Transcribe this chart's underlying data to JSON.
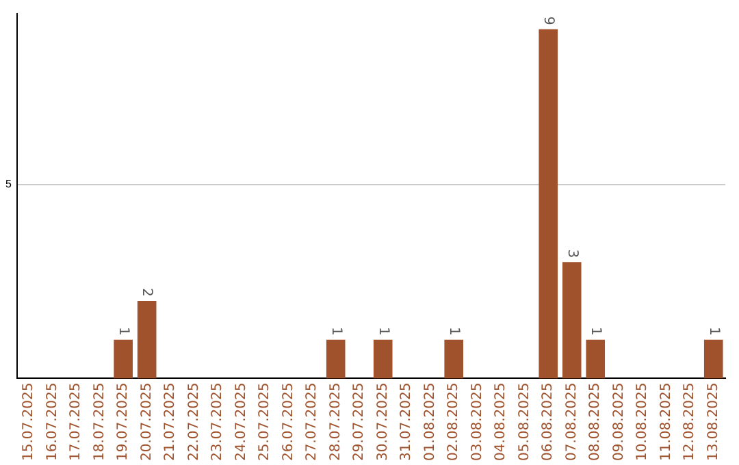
{
  "chart_data": {
    "type": "bar",
    "categories": [
      "15.07.2025",
      "16.07.2025",
      "17.07.2025",
      "18.07.2025",
      "19.07.2025",
      "20.07.2025",
      "21.07.2025",
      "22.07.2025",
      "23.07.2025",
      "24.07.2025",
      "25.07.2025",
      "26.07.2025",
      "27.07.2025",
      "28.07.2025",
      "29.07.2025",
      "30.07.2025",
      "31.07.2025",
      "01.08.2025",
      "02.08.2025",
      "03.08.2025",
      "04.08.2025",
      "05.08.2025",
      "06.08.2025",
      "07.08.2025",
      "08.08.2025",
      "09.08.2025",
      "10.08.2025",
      "11.08.2025",
      "12.08.2025",
      "13.08.2025"
    ],
    "values": [
      0,
      0,
      0,
      0,
      1,
      2,
      0,
      0,
      0,
      0,
      0,
      0,
      0,
      1,
      0,
      1,
      0,
      0,
      1,
      0,
      0,
      0,
      9,
      3,
      1,
      0,
      0,
      0,
      0,
      1
    ],
    "color": "#a0522d",
    "value_labels": [
      null,
      null,
      null,
      null,
      "1",
      "2",
      null,
      null,
      null,
      null,
      null,
      null,
      null,
      "1",
      null,
      "1",
      null,
      null,
      "1",
      null,
      null,
      null,
      "9",
      "3",
      "1",
      null,
      null,
      null,
      null,
      "1"
    ],
    "ylim": [
      0,
      9.4
    ],
    "yticks": [
      5
    ],
    "grid": "y"
  }
}
